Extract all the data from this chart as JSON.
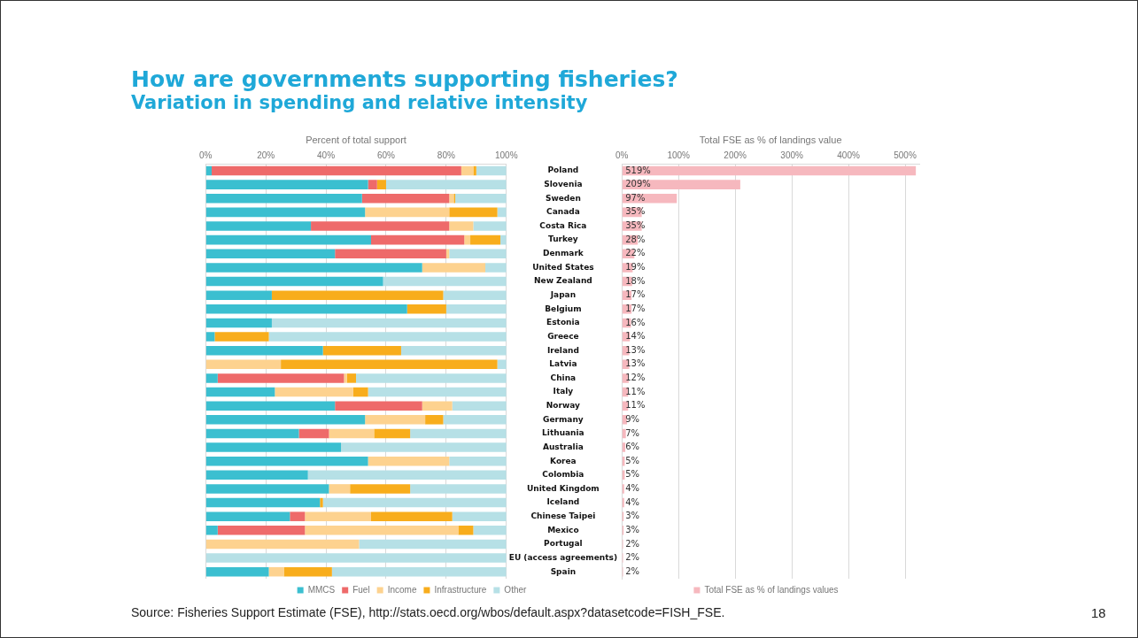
{
  "chart_data": [
    {
      "type": "bar",
      "orientation": "horizontal",
      "stacked": true,
      "title": "How are governments supporting fisheries?",
      "subtitle": "Variation in spending and relative intensity",
      "xlabel": "Percent of total support",
      "categories": [
        "Poland",
        "Slovenia",
        "Sweden",
        "Canada",
        "Costa Rica",
        "Turkey",
        "Denmark",
        "United States",
        "New Zealand",
        "Japan",
        "Belgium",
        "Estonia",
        "Greece",
        "Ireland",
        "Latvia",
        "China",
        "Italy",
        "Norway",
        "Germany",
        "Lithuania",
        "Australia",
        "Korea",
        "Colombia",
        "United Kingdom",
        "Iceland",
        "Chinese Taipei",
        "Mexico",
        "Portugal",
        "EU (access agreements)",
        "Spain"
      ],
      "series": [
        {
          "name": "MMCS",
          "color": "#3bbfd0",
          "values": [
            2,
            54,
            52,
            53,
            35,
            55,
            43,
            72,
            59,
            22,
            67,
            22,
            3,
            39,
            0,
            4,
            23,
            43,
            53,
            31,
            45,
            54,
            34,
            41,
            38,
            28,
            4,
            0,
            0,
            21
          ]
        },
        {
          "name": "Fuel",
          "color": "#ee6a6a",
          "values": [
            83,
            3,
            29,
            0,
            46,
            31,
            37,
            0,
            0,
            0,
            0,
            0,
            0,
            0,
            0,
            42,
            0,
            29,
            0,
            10,
            0,
            0,
            0,
            0,
            0,
            5,
            29,
            0,
            0,
            0
          ]
        },
        {
          "name": "Income",
          "color": "#fdd28f",
          "values": [
            4,
            0,
            1.5,
            28,
            8,
            2,
            1,
            21,
            0,
            0,
            0,
            0,
            0,
            0,
            25,
            1,
            26,
            10,
            20,
            15,
            0,
            27,
            0,
            7,
            0,
            22,
            51,
            51,
            0,
            5
          ]
        },
        {
          "name": "Infrastructure",
          "color": "#f8ad1c",
          "values": [
            1,
            3,
            0.5,
            16,
            0,
            10,
            0,
            0,
            0,
            57,
            13,
            0,
            18,
            26,
            72,
            3,
            5,
            0,
            6,
            12,
            0,
            0,
            0,
            20,
            1,
            27,
            5,
            0,
            0,
            16
          ]
        },
        {
          "name": "Other",
          "color": "#b6e0e6",
          "values": [
            10,
            40,
            17,
            3,
            11,
            2,
            19,
            7,
            41,
            21,
            20,
            78,
            79,
            35,
            3,
            50,
            46,
            18,
            21,
            32,
            55,
            19,
            66,
            32,
            61,
            18,
            11,
            49,
            100,
            58
          ]
        }
      ],
      "xlim": [
        0,
        100
      ],
      "xticks": [
        {
          "value": 0,
          "label": "0%"
        },
        {
          "value": 20,
          "label": "20%"
        },
        {
          "value": 40,
          "label": "40%"
        },
        {
          "value": 60,
          "label": "60%"
        },
        {
          "value": 80,
          "label": "80%"
        },
        {
          "value": 100,
          "label": "100%"
        }
      ],
      "grid": "x",
      "legend": "bottom",
      "annotations": [
        "Source: Fisheries Support Estimate (FSE), http://stats.oecd.org/wbos/default.aspx?datasetcode=FISH_FSE.",
        "18"
      ]
    },
    {
      "type": "bar",
      "orientation": "horizontal",
      "xlabel": "Total FSE as % of landings value",
      "categories": [
        null,
        null,
        null,
        null,
        null,
        null,
        null,
        null,
        null,
        null,
        null,
        null,
        null,
        null,
        null,
        null,
        null,
        null,
        null,
        null,
        null,
        null,
        null,
        null,
        null,
        null,
        null,
        null,
        null,
        null
      ],
      "series": [
        {
          "name": "Total FSE as % of landings values",
          "color": "#f6b8be",
          "values": [
            519,
            209,
            97,
            35,
            35,
            28,
            22,
            19,
            18,
            17,
            17,
            16,
            14,
            13,
            13,
            12,
            11,
            11,
            9,
            7,
            6,
            5,
            5,
            4,
            4,
            3,
            3,
            2,
            2,
            2
          ],
          "value_labels": [
            "519%",
            "209%",
            "97%",
            "35%",
            "35%",
            "28%",
            "22%",
            "19%",
            "18%",
            "17%",
            "17%",
            "16%",
            "14%",
            "13%",
            "13%",
            "12%",
            "11%",
            "11%",
            "9%",
            "7%",
            "6%",
            "5%",
            "5%",
            "4%",
            "4%",
            "3%",
            "3%",
            "2%",
            "2%",
            "2%"
          ]
        }
      ],
      "xlim": [
        0,
        525
      ],
      "xticks": [
        {
          "value": 0,
          "label": "0%"
        },
        {
          "value": 100,
          "label": "100%"
        },
        {
          "value": 200,
          "label": "200%"
        },
        {
          "value": 300,
          "label": "300%"
        },
        {
          "value": 400,
          "label": "400%"
        },
        {
          "value": 500,
          "label": "500%"
        }
      ],
      "grid": "x",
      "legend": "bottom",
      "tick_labels": "x"
    }
  ]
}
